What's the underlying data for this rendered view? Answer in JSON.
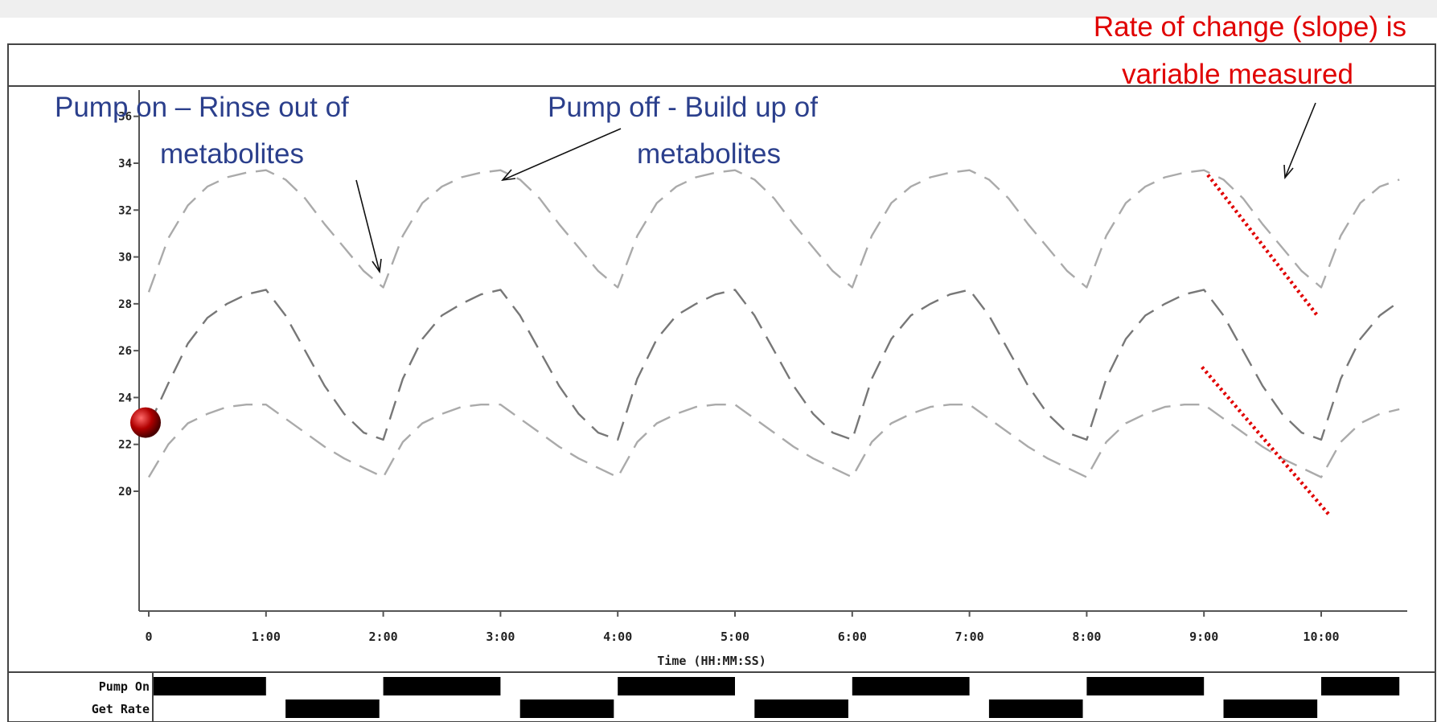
{
  "chart_data": {
    "type": "line",
    "xlabel": "Time (HH:MM:SS)",
    "x_ticks": [
      {
        "value": 0,
        "label": "0"
      },
      {
        "value": 60,
        "label": "1:00"
      },
      {
        "value": 120,
        "label": "2:00"
      },
      {
        "value": 180,
        "label": "3:00"
      },
      {
        "value": 240,
        "label": "4:00"
      },
      {
        "value": 300,
        "label": "5:00"
      },
      {
        "value": 360,
        "label": "6:00"
      },
      {
        "value": 420,
        "label": "7:00"
      },
      {
        "value": 480,
        "label": "8:00"
      },
      {
        "value": 540,
        "label": "9:00"
      },
      {
        "value": 600,
        "label": "10:00"
      }
    ],
    "y_ticks": [
      20,
      22,
      24,
      26,
      28,
      30,
      32,
      34,
      36
    ],
    "xlim": [
      -5,
      645
    ],
    "ylim": [
      14,
      40
    ],
    "series": [
      {
        "color": "#aaaaaa",
        "x": [
          0,
          10,
          20,
          30,
          40,
          50,
          60,
          70,
          80,
          90,
          100,
          110,
          120,
          130,
          140,
          150,
          160,
          170,
          180,
          190,
          200,
          210,
          220,
          230,
          240,
          250,
          260,
          270,
          280,
          290,
          300,
          310,
          320,
          330,
          340,
          350,
          360,
          370,
          380,
          390,
          400,
          410,
          420,
          430,
          440,
          450,
          460,
          470,
          480,
          490,
          500,
          510,
          520,
          530,
          540,
          550,
          560,
          570,
          580,
          590,
          600,
          610,
          620,
          630,
          640
        ],
        "values": [
          28.5,
          30.8,
          32.2,
          33.0,
          33.4,
          33.6,
          33.7,
          33.3,
          32.5,
          31.4,
          30.4,
          29.4,
          28.7,
          30.9,
          32.3,
          33.0,
          33.4,
          33.6,
          33.7,
          33.3,
          32.5,
          31.4,
          30.4,
          29.4,
          28.7,
          30.9,
          32.3,
          33.0,
          33.4,
          33.6,
          33.7,
          33.3,
          32.5,
          31.4,
          30.4,
          29.4,
          28.7,
          30.9,
          32.3,
          33.0,
          33.4,
          33.6,
          33.7,
          33.3,
          32.5,
          31.4,
          30.4,
          29.4,
          28.7,
          30.9,
          32.3,
          33.0,
          33.4,
          33.6,
          33.7,
          33.3,
          32.5,
          31.4,
          30.4,
          29.4,
          28.7,
          30.9,
          32.3,
          33.0,
          33.3
        ]
      },
      {
        "color": "#777777",
        "x": [
          0,
          10,
          20,
          30,
          40,
          50,
          60,
          70,
          80,
          90,
          100,
          110,
          120,
          130,
          140,
          150,
          160,
          170,
          180,
          190,
          200,
          210,
          220,
          230,
          240,
          250,
          260,
          270,
          280,
          290,
          300,
          310,
          320,
          330,
          340,
          350,
          360,
          370,
          380,
          390,
          400,
          410,
          420,
          430,
          440,
          450,
          460,
          470,
          480,
          490,
          500,
          510,
          520,
          530,
          540,
          550,
          560,
          570,
          580,
          590,
          600,
          610,
          620,
          630,
          640
        ],
        "values": [
          22.8,
          24.6,
          26.3,
          27.4,
          28.0,
          28.4,
          28.6,
          27.5,
          26.0,
          24.5,
          23.3,
          22.5,
          22.2,
          24.8,
          26.5,
          27.5,
          28.0,
          28.4,
          28.6,
          27.5,
          26.0,
          24.5,
          23.3,
          22.5,
          22.2,
          24.8,
          26.5,
          27.5,
          28.0,
          28.4,
          28.6,
          27.5,
          26.0,
          24.5,
          23.3,
          22.5,
          22.2,
          24.8,
          26.5,
          27.5,
          28.0,
          28.4,
          28.6,
          27.5,
          26.0,
          24.5,
          23.3,
          22.5,
          22.2,
          24.8,
          26.5,
          27.5,
          28.0,
          28.4,
          28.6,
          27.5,
          26.0,
          24.5,
          23.3,
          22.5,
          22.2,
          24.8,
          26.5,
          27.5,
          28.1
        ]
      },
      {
        "color": "#aaaaaa",
        "x": [
          0,
          10,
          20,
          30,
          40,
          50,
          60,
          70,
          80,
          90,
          100,
          110,
          120,
          130,
          140,
          150,
          160,
          170,
          180,
          190,
          200,
          210,
          220,
          230,
          240,
          250,
          260,
          270,
          280,
          290,
          300,
          310,
          320,
          330,
          340,
          350,
          360,
          370,
          380,
          390,
          400,
          410,
          420,
          430,
          440,
          450,
          460,
          470,
          480,
          490,
          500,
          510,
          520,
          530,
          540,
          550,
          560,
          570,
          580,
          590,
          600,
          610,
          620,
          630,
          640
        ],
        "values": [
          20.6,
          22.0,
          22.9,
          23.3,
          23.6,
          23.7,
          23.7,
          23.1,
          22.5,
          21.9,
          21.4,
          21.0,
          20.6,
          22.1,
          22.9,
          23.3,
          23.6,
          23.7,
          23.7,
          23.1,
          22.5,
          21.9,
          21.4,
          21.0,
          20.6,
          22.1,
          22.9,
          23.3,
          23.6,
          23.7,
          23.7,
          23.1,
          22.5,
          21.9,
          21.4,
          21.0,
          20.6,
          22.1,
          22.9,
          23.3,
          23.6,
          23.7,
          23.7,
          23.1,
          22.5,
          21.9,
          21.4,
          21.0,
          20.6,
          22.1,
          22.9,
          23.3,
          23.6,
          23.7,
          23.7,
          23.1,
          22.5,
          21.9,
          21.4,
          21.0,
          20.6,
          22.1,
          22.9,
          23.3,
          23.5
        ]
      }
    ],
    "marker": {
      "x": 0,
      "y": 23,
      "color": "#b00000"
    },
    "slope_lines": [
      {
        "x0": 542,
        "y0": 33.5,
        "x1": 598,
        "y1": 27.5,
        "color": "#e00000"
      },
      {
        "x0": 539,
        "y0": 25.3,
        "x1": 604,
        "y1": 19.0,
        "color": "#e00000"
      }
    ],
    "digital_rows": [
      {
        "label": "Pump On",
        "high": [
          [
            0,
            60
          ],
          [
            120,
            180
          ],
          [
            240,
            300
          ],
          [
            360,
            420
          ],
          [
            480,
            540
          ],
          [
            600,
            640
          ]
        ]
      },
      {
        "label": "Get Rate",
        "high": [
          [
            70,
            118
          ],
          [
            190,
            238
          ],
          [
            310,
            358
          ],
          [
            430,
            478
          ],
          [
            550,
            598
          ]
        ]
      }
    ],
    "annotations": {
      "pump_on_line1": "Pump on – Rinse out of",
      "pump_on_line2": "metabolites",
      "pump_off_line1": "Pump off - Build up of",
      "pump_off_line2": "metabolites",
      "slope_line1": "Rate of change (slope) is",
      "slope_line2": "variable measured"
    },
    "annotation_colors": {
      "blue": "#2b3f8c",
      "red": "#e00000"
    }
  }
}
